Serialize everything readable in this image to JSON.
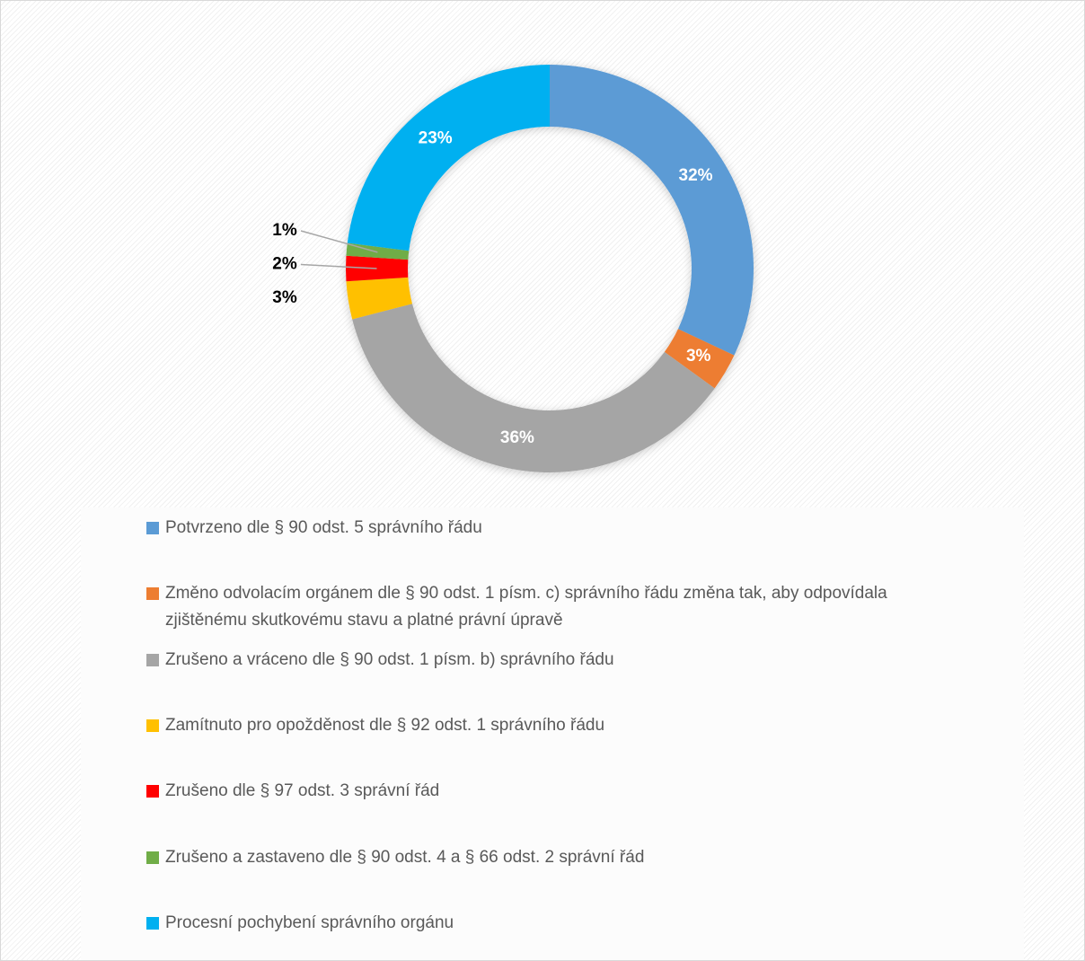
{
  "chart_data": {
    "type": "donut",
    "categories": [
      "Potvrzeno dle § 90 odst. 5 správního řádu",
      "Změno odvolacím orgánem dle § 90 odst. 1 písm. c) správního řádu změna tak, aby odpovídala zjištěnému skutkovému stavu a platné právní úpravě",
      "Zrušeno a vráceno dle § 90 odst. 1 písm. b) správního řádu",
      "Zamítnuto pro opožděnost dle § 92 odst. 1 správního řádu",
      "Zrušeno dle § 97 odst. 3 správní řád",
      "Zrušeno a zastaveno dle § 90 odst. 4 a § 66 odst. 2 správní řád",
      "Procesní pochybení správního orgánu"
    ],
    "values": [
      32,
      3,
      36,
      3,
      2,
      1,
      23
    ],
    "value_labels": [
      "32%",
      "3%",
      "36%",
      "3%",
      "2%",
      "1%",
      "23%"
    ],
    "colors": [
      "#5b9bd5",
      "#ed7d31",
      "#a5a5a5",
      "#ffc000",
      "#ff0000",
      "#70ad47",
      "#00b0f0"
    ],
    "legend": "bottom"
  }
}
